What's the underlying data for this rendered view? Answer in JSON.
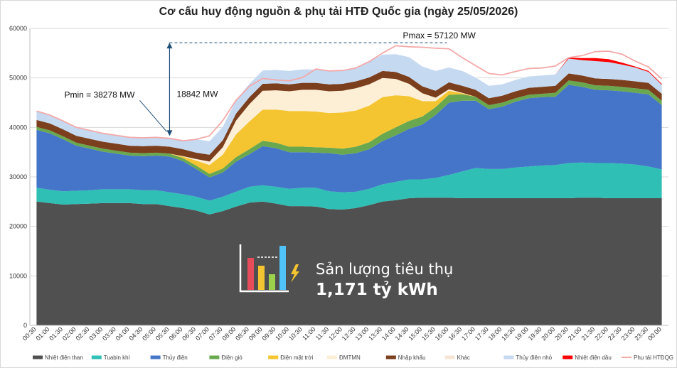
{
  "chart_data": {
    "type": "area",
    "stacked": true,
    "title": "Cơ cấu huy động nguồn & phụ tải HTĐ Quốc gia (ngày 25/05/2026)",
    "ylim": [
      0,
      60000
    ],
    "yticks": [
      "0",
      "10000",
      "20000",
      "30000",
      "40000",
      "50000",
      "60000"
    ],
    "grid": true,
    "legend_position": "bottom",
    "categories": [
      "00:30",
      "01:00",
      "01:30",
      "02:00",
      "02:30",
      "03:00",
      "03:30",
      "04:00",
      "04:30",
      "05:00",
      "05:30",
      "06:00",
      "06:30",
      "07:00",
      "07:30",
      "08:00",
      "08:30",
      "09:00",
      "09:30",
      "10:00",
      "10:30",
      "11:00",
      "11:30",
      "12:00",
      "12:30",
      "13:00",
      "13:30",
      "14:00",
      "14:30",
      "15:00",
      "15:30",
      "16:00",
      "16:30",
      "17:00",
      "17:30",
      "18:00",
      "18:30",
      "19:00",
      "19:30",
      "20:00",
      "20:30",
      "21:00",
      "21:30",
      "22:00",
      "22:30",
      "23:00",
      "23:30",
      "00:00"
    ],
    "series": [
      {
        "name": "Nhiệt điện than",
        "color": "#505050",
        "values": [
          25000,
          24700,
          24400,
          24500,
          24600,
          24700,
          24700,
          24700,
          24500,
          24500,
          24100,
          23700,
          23200,
          22400,
          23100,
          24000,
          24800,
          25000,
          24600,
          24100,
          24100,
          24000,
          23500,
          23400,
          23700,
          24300,
          25000,
          25300,
          25700,
          25800,
          25800,
          25800,
          25700,
          25700,
          25700,
          25700,
          25700,
          25700,
          25700,
          25700,
          25700,
          25800,
          25800,
          25700,
          25700,
          25700,
          25700,
          25700
        ]
      },
      {
        "name": "Tuabin khí",
        "color": "#2fbfb4",
        "values": [
          2800,
          2700,
          2700,
          2700,
          2700,
          2800,
          2800,
          2800,
          2800,
          2800,
          2800,
          2800,
          2800,
          2800,
          2900,
          3000,
          3200,
          3300,
          3400,
          3500,
          3700,
          3800,
          3600,
          3500,
          3300,
          3300,
          3500,
          3700,
          3800,
          3700,
          4000,
          4600,
          5400,
          6100,
          5900,
          5900,
          6200,
          6400,
          6600,
          6700,
          7100,
          7100,
          7000,
          7100,
          7000,
          6800,
          6400,
          5800
        ]
      },
      {
        "name": "Thủy điện",
        "color": "#4575c8",
        "values": [
          11700,
          11400,
          10500,
          9100,
          8400,
          7600,
          7200,
          6800,
          6900,
          7000,
          7200,
          6700,
          5600,
          4700,
          4900,
          6100,
          6600,
          7900,
          7800,
          7400,
          7200,
          7100,
          7700,
          7600,
          7800,
          8000,
          8700,
          9400,
          10200,
          11100,
          12700,
          14600,
          14300,
          13600,
          12100,
          12600,
          13300,
          13800,
          13800,
          13800,
          15800,
          15300,
          14800,
          14700,
          14600,
          14500,
          14600,
          13000
        ]
      },
      {
        "name": "Điện gió",
        "color": "#6aa84f",
        "values": [
          600,
          600,
          600,
          600,
          600,
          600,
          600,
          600,
          600,
          600,
          600,
          600,
          700,
          700,
          800,
          900,
          1000,
          1100,
          1100,
          1100,
          1100,
          1100,
          1100,
          1200,
          1300,
          1400,
          1500,
          1600,
          1600,
          1600,
          1600,
          1600,
          1300,
          800,
          800,
          800,
          700,
          700,
          700,
          800,
          900,
          900,
          900,
          900,
          900,
          900,
          900,
          900
        ]
      },
      {
        "name": "Điện mặt trời",
        "color": "#f4c431",
        "values": [
          0,
          0,
          0,
          0,
          0,
          0,
          0,
          0,
          0,
          0,
          0,
          300,
          1000,
          1800,
          2800,
          4600,
          5600,
          6300,
          6700,
          7200,
          7200,
          7200,
          7000,
          7300,
          7300,
          7400,
          7400,
          6500,
          5000,
          3100,
          1200,
          800,
          200,
          0,
          0,
          0,
          0,
          0,
          0,
          0,
          0,
          0,
          0,
          0,
          0,
          0,
          0,
          0
        ]
      },
      {
        "name": "ĐMTMN",
        "color": "#fcefd5",
        "values": [
          0,
          0,
          0,
          0,
          0,
          0,
          0,
          0,
          0,
          0,
          0,
          100,
          300,
          700,
          1500,
          2800,
          3500,
          3800,
          3900,
          4000,
          4300,
          4400,
          4400,
          4400,
          4500,
          4300,
          3900,
          3300,
          2500,
          1600,
          700,
          300,
          100,
          0,
          0,
          0,
          0,
          0,
          0,
          0,
          0,
          0,
          0,
          0,
          0,
          0,
          0,
          0
        ]
      },
      {
        "name": "Nhập khẩu",
        "color": "#7b3f1e",
        "values": [
          1400,
          1400,
          1400,
          1400,
          1400,
          1400,
          1400,
          1400,
          1400,
          1400,
          1400,
          1400,
          1300,
          1400,
          1400,
          1400,
          1400,
          1400,
          1400,
          1400,
          1400,
          1400,
          1400,
          1400,
          1400,
          1400,
          1400,
          1400,
          1400,
          1400,
          1400,
          1400,
          1400,
          1400,
          1400,
          1400,
          1400,
          1400,
          1400,
          1400,
          1400,
          1400,
          1400,
          1400,
          1400,
          1400,
          1400,
          1400
        ]
      },
      {
        "name": "Khác",
        "color": "#f7e4d4",
        "values": [
          0,
          0,
          0,
          0,
          0,
          0,
          0,
          0,
          0,
          0,
          0,
          0,
          0,
          0,
          0,
          0,
          0,
          0,
          0,
          0,
          0,
          0,
          0,
          0,
          0,
          0,
          0,
          0,
          0,
          0,
          0,
          0,
          0,
          0,
          0,
          0,
          0,
          0,
          0,
          0,
          0,
          0,
          0,
          0,
          0,
          0,
          0,
          0
        ]
      },
      {
        "name": "Thủy điện nhỏ",
        "color": "#c5d9f1",
        "values": [
          1700,
          1700,
          1700,
          1700,
          1700,
          1700,
          1700,
          1700,
          1700,
          1700,
          1700,
          1700,
          2700,
          2700,
          2700,
          2700,
          2700,
          2700,
          2700,
          2700,
          2700,
          2700,
          2700,
          2700,
          2700,
          3200,
          3300,
          3600,
          4000,
          4000,
          4000,
          3000,
          3000,
          2500,
          2500,
          2300,
          2300,
          2300,
          2300,
          2300,
          3000,
          3100,
          3500,
          3400,
          3100,
          2800,
          2200,
          1800
        ]
      },
      {
        "name": "Nhiệt điện dầu",
        "color": "#ff0000",
        "values": [
          0,
          0,
          0,
          0,
          0,
          0,
          0,
          0,
          0,
          0,
          0,
          0,
          0,
          0,
          0,
          0,
          0,
          0,
          0,
          0,
          0,
          0,
          0,
          0,
          0,
          0,
          0,
          0,
          0,
          0,
          0,
          0,
          0,
          0,
          0,
          0,
          0,
          0,
          0,
          0,
          200,
          400,
          600,
          600,
          400,
          200,
          200,
          200
        ]
      }
    ],
    "load_series": {
      "name": "Phụ tải HTĐQG",
      "color": "#f4a9a9",
      "values": [
        43300,
        42500,
        41300,
        40000,
        39400,
        38800,
        38400,
        38000,
        37900,
        38000,
        37800,
        37300,
        37600,
        38300,
        41400,
        45500,
        48300,
        49900,
        49600,
        49400,
        50100,
        51800,
        51400,
        51500,
        52000,
        53300,
        55000,
        56500,
        56300,
        56200,
        56000,
        55900,
        54100,
        52500,
        50900,
        50600,
        51300,
        51900,
        52000,
        52400,
        54100,
        54500,
        55300,
        55400,
        54800,
        53400,
        52200,
        49800
      ]
    },
    "annotations": {
      "pmin_label": "Pmin = 38278 MW",
      "pmax_label": "Pmax = 57120 MW",
      "diff_label": "18842 MW",
      "pmin_value": 38278,
      "pmax_value": 57120,
      "pmin_time": "05:30",
      "pmax_time": "14:00"
    }
  },
  "overlay": {
    "label": "Sản lượng tiêu thụ",
    "value": "1,171 tỷ kWh",
    "icon": "bar-chart-lightning-icon"
  }
}
